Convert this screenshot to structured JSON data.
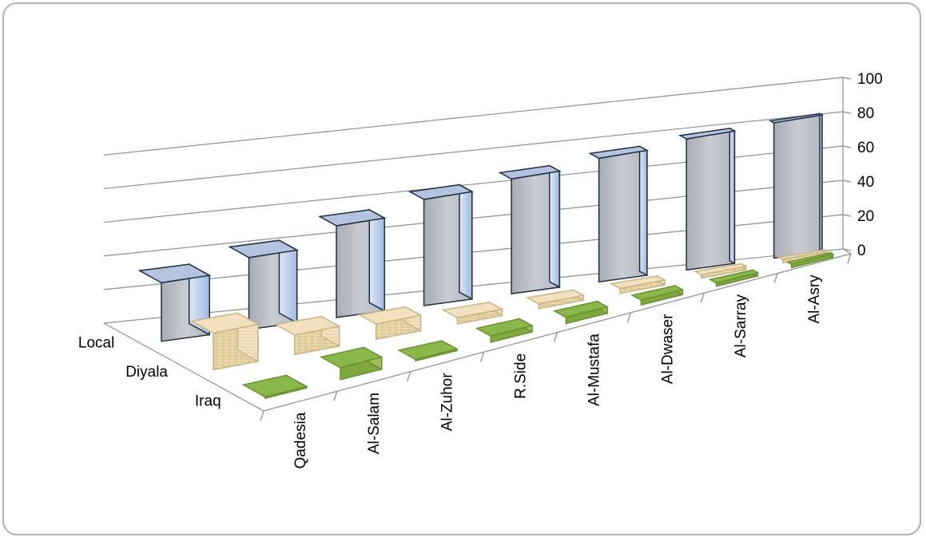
{
  "chart_data": {
    "type": "bar",
    "chart_subtype": "3d-column",
    "title": "",
    "xlabel": "",
    "ylabel": "",
    "ylim": [
      0,
      100
    ],
    "yticks": [
      "0",
      "20",
      "40",
      "60",
      "80",
      "100"
    ],
    "grid": true,
    "legend": "none",
    "categories": [
      "Qadesia",
      "Al-Salam",
      "Al-Zuhor",
      "R.Side",
      "Al-Mustafa",
      "Al-Dwaser",
      "Al-Sarray",
      "Al-Asry"
    ],
    "series": [
      {
        "name": "Iraq",
        "color": "#8fb548",
        "values": [
          1,
          8,
          1,
          4,
          4,
          3,
          2,
          2
        ]
      },
      {
        "name": "Diyala",
        "color": "#e8cf9c",
        "values": [
          25,
          13,
          10,
          4,
          3,
          3,
          2,
          2
        ]
      },
      {
        "name": "Local",
        "color": "#c8d8f0",
        "values": [
          40,
          48,
          60,
          68,
          72,
          76,
          79,
          80
        ]
      }
    ]
  }
}
